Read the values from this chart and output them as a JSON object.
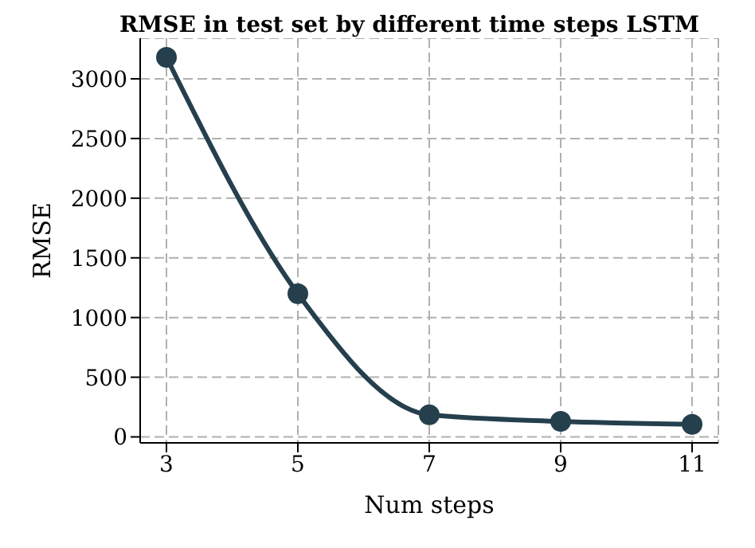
{
  "chart_data": {
    "type": "line",
    "title": "RMSE in test set by different time steps LSTM",
    "xlabel": "Num steps",
    "ylabel": "RMSE",
    "x": [
      3,
      5,
      7,
      9,
      11
    ],
    "series": [
      {
        "color": "#253f4d",
        "values": [
          3180,
          1200,
          185,
          130,
          105
        ]
      }
    ],
    "xlim": [
      2.6,
      11.4
    ],
    "xticks": [
      3,
      5,
      7,
      9,
      11
    ],
    "ylim": [
      -50,
      3340
    ],
    "yticks": [
      0,
      500,
      1000,
      1500,
      2000,
      2500,
      3000
    ],
    "grid": true,
    "marker": "circle",
    "line_style": "solid",
    "legend": false
  }
}
